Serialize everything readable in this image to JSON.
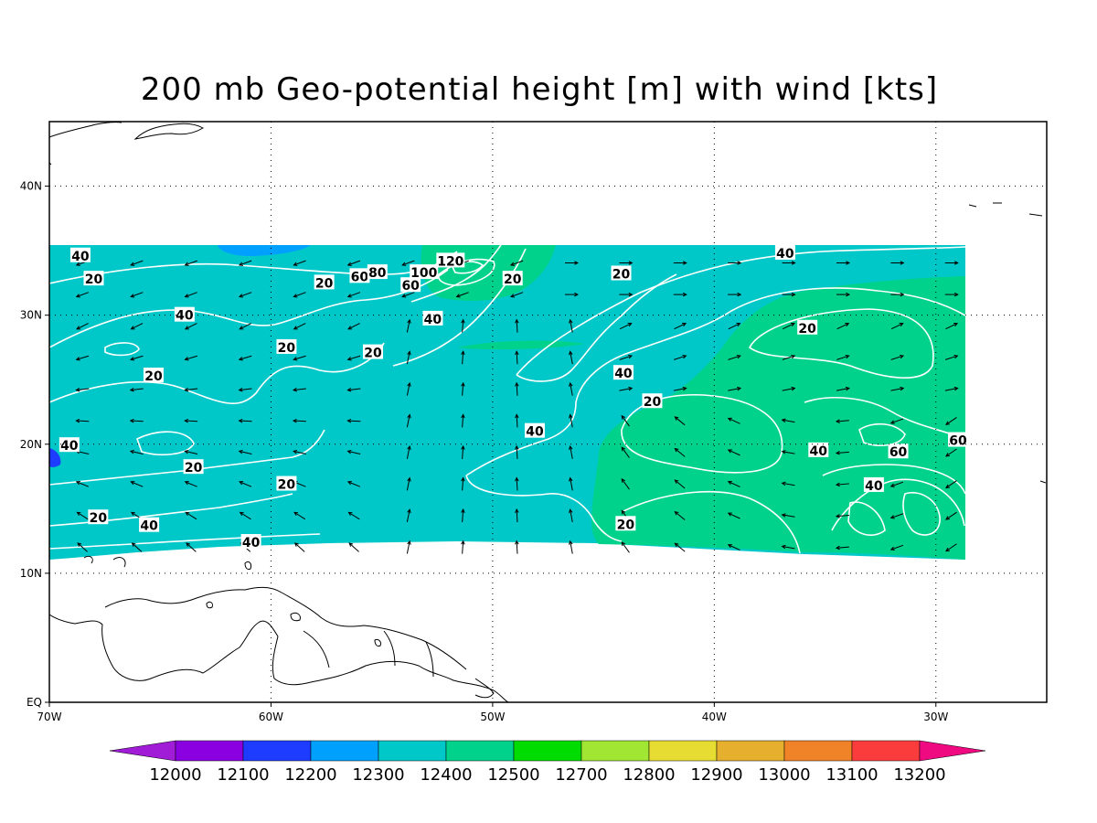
{
  "title": "200 mb Geo-potential height [m] with wind [kts]",
  "map": {
    "lon_range": [
      -70,
      -25
    ],
    "lat_range": [
      0,
      45
    ],
    "data_domain": {
      "lon": [
        -70,
        -29
      ],
      "lat": [
        11,
        35.5
      ]
    },
    "gridlines": "dotted",
    "x_ticks": [
      {
        "lon": -70,
        "label": "70W"
      },
      {
        "lon": -60,
        "label": "60W"
      },
      {
        "lon": -50,
        "label": "50W"
      },
      {
        "lon": -40,
        "label": "40W"
      },
      {
        "lon": -30,
        "label": "30W"
      }
    ],
    "y_ticks": [
      {
        "lat": 0,
        "label": "EQ"
      },
      {
        "lat": 10,
        "label": "10N"
      },
      {
        "lat": 20,
        "label": "20N"
      },
      {
        "lat": 30,
        "label": "30N"
      },
      {
        "lat": 40,
        "label": "40N"
      }
    ]
  },
  "colors": {
    "h12300": "#00c8c8",
    "h12400": "#00d28c",
    "h12200": "#00a0ff",
    "h12100": "#1e3cff",
    "contour": "#ffffff",
    "wind_arrow": "#000000",
    "coastline": "#000000"
  },
  "shaded_regions": [
    {
      "level": "12400",
      "area": "central-eastern subtropical Atlantic",
      "lon": [
        -46,
        -29
      ],
      "lat": [
        13,
        32
      ]
    },
    {
      "level": "12400",
      "area": "jet region near 35N 50W",
      "lon": [
        -54,
        -46
      ],
      "lat": [
        31,
        35.5
      ]
    },
    {
      "level": "12200",
      "area": "northern edge near 35N 62W",
      "lon": [
        -66,
        -58
      ],
      "lat": [
        34.5,
        35.5
      ]
    }
  ],
  "isotach_labels": [
    {
      "text": "40",
      "lon": -68.6,
      "lat": 34.6
    },
    {
      "text": "20",
      "lon": -68.0,
      "lat": 32.8
    },
    {
      "text": "40",
      "lon": -63.9,
      "lat": 30.0
    },
    {
      "text": "20",
      "lon": -59.3,
      "lat": 27.5
    },
    {
      "text": "20",
      "lon": -65.3,
      "lat": 25.3
    },
    {
      "text": "40",
      "lon": -69.1,
      "lat": 19.9
    },
    {
      "text": "20",
      "lon": -63.5,
      "lat": 18.2
    },
    {
      "text": "20",
      "lon": -59.3,
      "lat": 16.9
    },
    {
      "text": "20",
      "lon": -67.8,
      "lat": 14.3
    },
    {
      "text": "40",
      "lon": -65.5,
      "lat": 13.7
    },
    {
      "text": "40",
      "lon": -60.9,
      "lat": 12.4
    },
    {
      "text": "20",
      "lon": -57.6,
      "lat": 32.5
    },
    {
      "text": "60",
      "lon": -56.0,
      "lat": 33.0
    },
    {
      "text": "80",
      "lon": -55.2,
      "lat": 33.3
    },
    {
      "text": "100",
      "lon": -53.1,
      "lat": 33.3
    },
    {
      "text": "60",
      "lon": -53.7,
      "lat": 32.3
    },
    {
      "text": "120",
      "lon": -51.9,
      "lat": 34.2
    },
    {
      "text": "40",
      "lon": -52.7,
      "lat": 29.7
    },
    {
      "text": "20",
      "lon": -55.4,
      "lat": 27.1
    },
    {
      "text": "20",
      "lon": -49.1,
      "lat": 32.8
    },
    {
      "text": "20",
      "lon": -44.2,
      "lat": 33.2
    },
    {
      "text": "40",
      "lon": -36.8,
      "lat": 34.8
    },
    {
      "text": "40",
      "lon": -44.1,
      "lat": 25.5
    },
    {
      "text": "20",
      "lon": -42.8,
      "lat": 23.3
    },
    {
      "text": "40",
      "lon": -48.1,
      "lat": 21.0
    },
    {
      "text": "20",
      "lon": -35.8,
      "lat": 29.0
    },
    {
      "text": "40",
      "lon": -35.3,
      "lat": 19.5
    },
    {
      "text": "60",
      "lon": -31.7,
      "lat": 19.4
    },
    {
      "text": "60",
      "lon": -29.0,
      "lat": 20.3
    },
    {
      "text": "40",
      "lon": -32.8,
      "lat": 16.8
    },
    {
      "text": "20",
      "lon": -44.0,
      "lat": 13.8
    }
  ],
  "colorbar": {
    "values": [
      "12000",
      "12100",
      "12200",
      "12300",
      "12400",
      "12500",
      "12700",
      "12800",
      "12900",
      "13000",
      "13100",
      "13200"
    ],
    "colors": [
      "#a01cd6",
      "#8b00e0",
      "#1e3cff",
      "#00a0ff",
      "#00c8c8",
      "#00d28c",
      "#00dc00",
      "#a0e632",
      "#e6dc32",
      "#e6af2d",
      "#f08228",
      "#fa3c3c",
      "#f00a82"
    ]
  }
}
